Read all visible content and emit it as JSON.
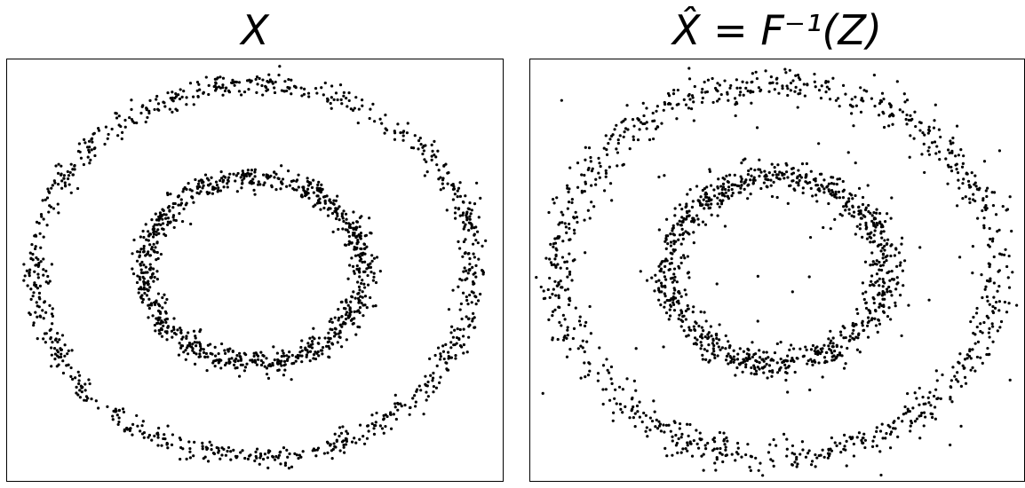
{
  "chart_data": [
    {
      "type": "scatter",
      "title": "X",
      "xlabel": "",
      "ylabel": "",
      "xlim": [
        -1.13,
        1.13
      ],
      "ylim": [
        -1.13,
        1.13
      ],
      "grid": false,
      "legend": "none",
      "point_color": "#000000",
      "series": [
        {
          "shape": "circle",
          "radius": 1.0,
          "noise": 0.032,
          "count": 900,
          "seed": 11,
          "outliers": 0
        },
        {
          "shape": "circle",
          "radius": 0.5,
          "noise": 0.032,
          "count": 900,
          "seed": 23,
          "outliers": 0
        }
      ]
    },
    {
      "type": "scatter",
      "title": "X̂ = F⁻¹(Z)",
      "xlabel": "",
      "ylabel": "",
      "xlim": [
        -1.13,
        1.13
      ],
      "ylim": [
        -1.13,
        1.13
      ],
      "grid": false,
      "legend": "none",
      "point_color": "#000000",
      "series": [
        {
          "shape": "circle",
          "radius": 1.0,
          "noise": 0.045,
          "count": 900,
          "seed": 37,
          "outliers": 55
        },
        {
          "shape": "circle",
          "radius": 0.5,
          "noise": 0.04,
          "count": 900,
          "seed": 53,
          "outliers": 45
        }
      ]
    }
  ]
}
